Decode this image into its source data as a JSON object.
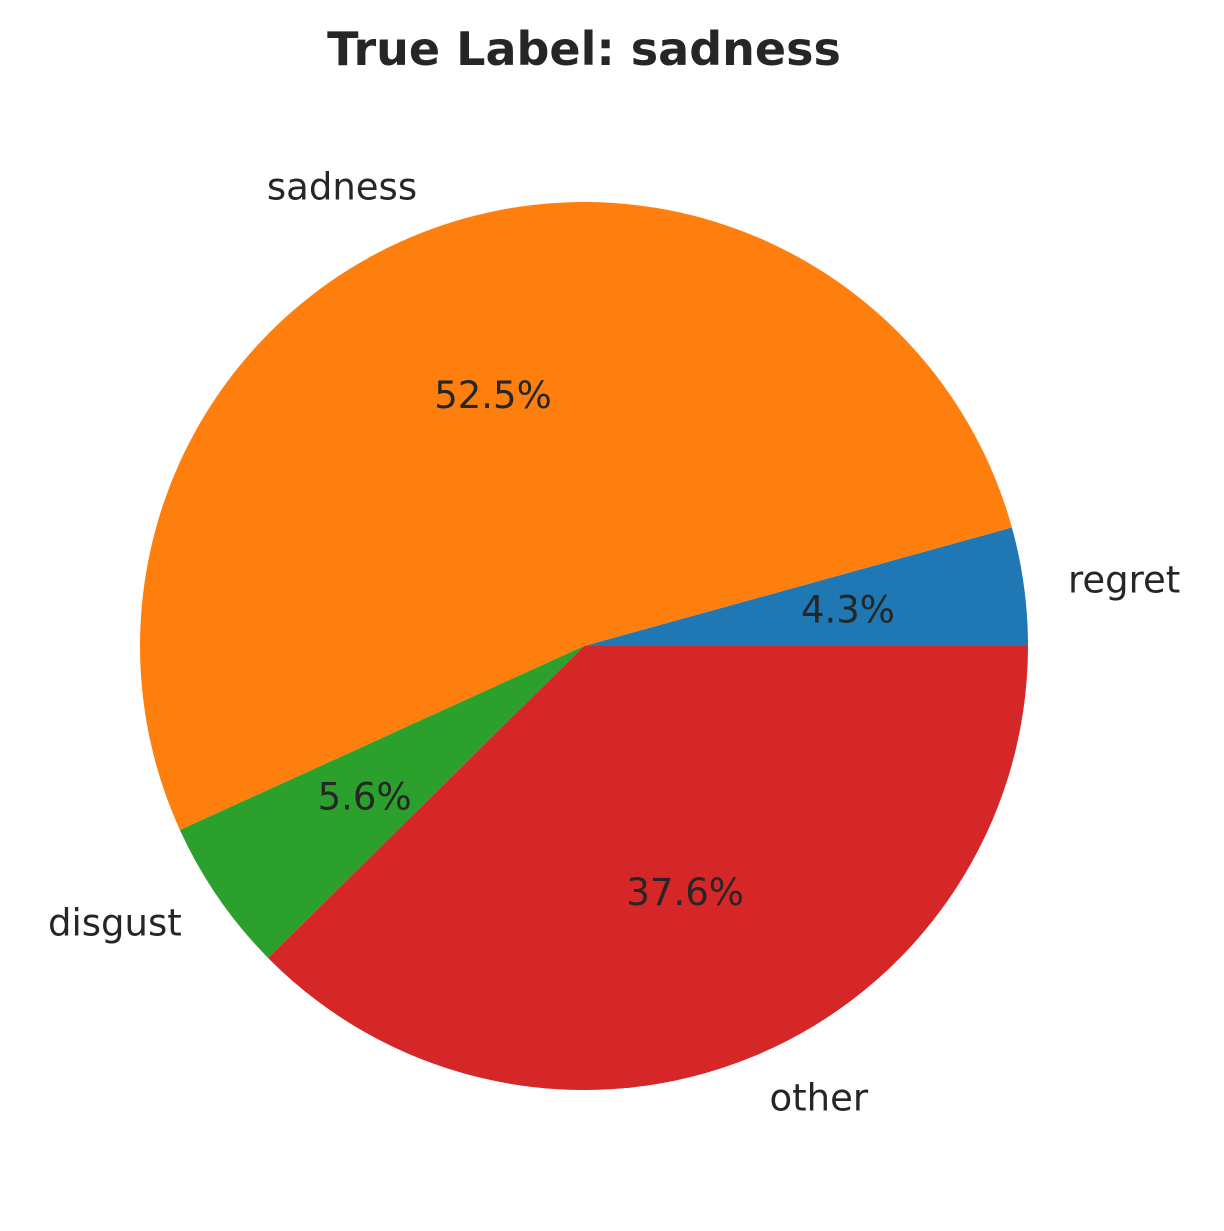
{
  "chart_data": {
    "type": "pie",
    "title": "True Label: sadness",
    "slices": [
      {
        "label": "regret",
        "value": 4.3,
        "pct_label": "4.3%",
        "color": "#1f77b4"
      },
      {
        "label": "sadness",
        "value": 52.5,
        "pct_label": "52.5%",
        "color": "#ff7f0e"
      },
      {
        "label": "disgust",
        "value": 5.6,
        "pct_label": "5.6%",
        "color": "#2ca02c"
      },
      {
        "label": "other",
        "value": 37.6,
        "pct_label": "37.6%",
        "color": "#d62728"
      }
    ],
    "start_angle_deg": 0,
    "direction": "counterclockwise"
  }
}
